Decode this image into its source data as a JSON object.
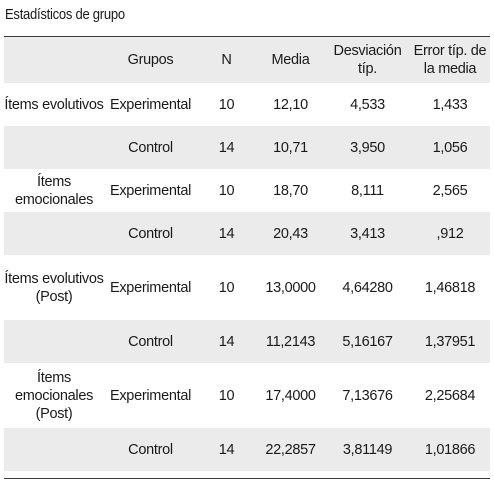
{
  "caption": "Estadísticos de grupo",
  "columns": [
    "",
    "Grupos",
    "N",
    "Media",
    "Desviación típ.",
    "Error típ. de la media"
  ],
  "rows": [
    {
      "item": "Ítems evolutivos",
      "grupo": "Experimental",
      "n": "10",
      "media": "12,10",
      "desv": "4,533",
      "error": "1,433"
    },
    {
      "item": "",
      "grupo": "Control",
      "n": "14",
      "media": "10,71",
      "desv": "3,950",
      "error": "1,056"
    },
    {
      "item": "Ítems emocionales",
      "grupo": "Experimental",
      "n": "10",
      "media": "18,70",
      "desv": "8,111",
      "error": "2,565"
    },
    {
      "item": "",
      "grupo": "Control",
      "n": "14",
      "media": "20,43",
      "desv": "3,413",
      "error": ",912"
    },
    {
      "item": "Ítems evolutivos (Post)",
      "grupo": "Experimental",
      "n": "10",
      "media": "13,0000",
      "desv": "4,64280",
      "error": "1,46818"
    },
    {
      "item": "",
      "grupo": "Control",
      "n": "14",
      "media": "11,2143",
      "desv": "5,16167",
      "error": "1,37951"
    },
    {
      "item": "Ítems emocionales (Post)",
      "grupo": "Experimental",
      "n": "10",
      "media": "17,4000",
      "desv": "7,13676",
      "error": "2,25684"
    },
    {
      "item": "",
      "grupo": "Control",
      "n": "14",
      "media": "22,2857",
      "desv": "3,81149",
      "error": "1,01866"
    }
  ]
}
